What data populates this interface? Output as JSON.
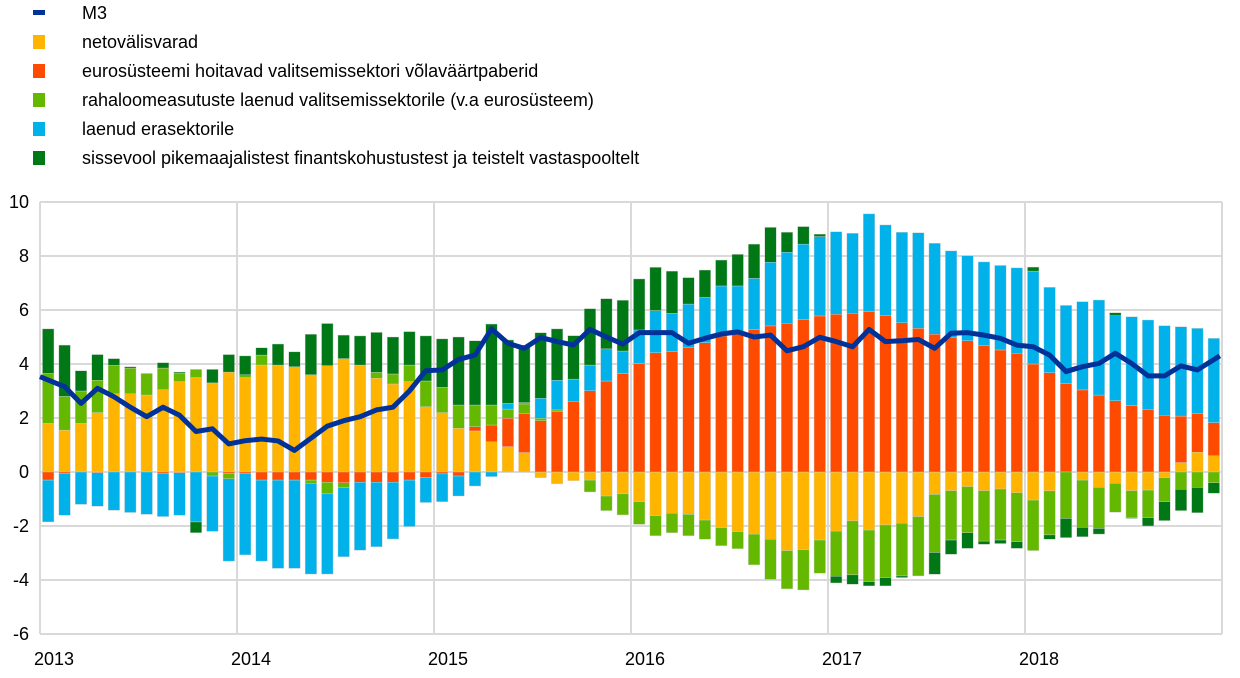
{
  "chart_data": {
    "type": "bar",
    "stacked": true,
    "title": "",
    "xlabel": "",
    "ylabel": "",
    "ylim": [
      -6,
      10
    ],
    "yticks": [
      -6,
      -4,
      -2,
      0,
      2,
      4,
      6,
      8,
      10
    ],
    "xticks": [
      "2013",
      "2014",
      "2015",
      "2016",
      "2017",
      "2018"
    ],
    "x_start": "2013-01",
    "x_end": "2018-12",
    "frequency": "monthly",
    "grid": true,
    "legend_position": "top-left",
    "line": {
      "name": "M3",
      "color": "#003299",
      "values": [
        3.53,
        3.16,
        2.54,
        3.1,
        2.79,
        2.4,
        2.05,
        2.4,
        2.1,
        1.5,
        1.6,
        1.04,
        1.16,
        1.22,
        1.15,
        0.8,
        1.25,
        1.7,
        1.9,
        2.05,
        2.3,
        2.4,
        3.0,
        3.75,
        3.78,
        4.17,
        4.33,
        5.3,
        4.77,
        4.58,
        4.98,
        4.83,
        4.7,
        5.28,
        5.0,
        4.74,
        5.16,
        5.16,
        5.16,
        4.77,
        4.95,
        5.11,
        5.19,
        5.0,
        5.07,
        4.49,
        4.64,
        4.99,
        4.83,
        4.64,
        5.28,
        4.83,
        4.86,
        4.91,
        4.58,
        5.14,
        5.16,
        5.07,
        4.95,
        4.7,
        4.64,
        4.33,
        3.72,
        3.9,
        4.02,
        4.4,
        4.02,
        3.56,
        3.56,
        3.93,
        3.78,
        4.15
      ]
    },
    "series": [
      {
        "name": "netovälisvarad",
        "color": "#FFB400",
        "values": [
          1.8,
          1.55,
          1.8,
          2.2,
          2.9,
          2.9,
          2.85,
          3.05,
          3.35,
          3.5,
          3.3,
          3.7,
          3.5,
          3.96,
          3.96,
          3.9,
          3.6,
          3.94,
          4.2,
          3.96,
          3.47,
          3.26,
          3.35,
          2.42,
          2.2,
          1.62,
          1.52,
          1.12,
          0.94,
          0.72,
          -0.21,
          -0.44,
          -0.32,
          -0.3,
          -0.89,
          -0.81,
          -1.1,
          -1.62,
          -1.53,
          -1.57,
          -1.78,
          -2.06,
          -2.21,
          -2.3,
          -2.49,
          -2.91,
          -2.88,
          -2.52,
          -2.19,
          -1.81,
          -2.15,
          -1.96,
          -1.9,
          -1.65,
          -0.83,
          -0.69,
          -0.54,
          -0.69,
          -0.63,
          -0.77,
          -1.04,
          -0.7,
          0,
          -0.3,
          -0.57,
          -0.42,
          -0.69,
          -0.67,
          -0.21,
          0.35,
          0.73,
          0.6
        ]
      },
      {
        "name": "eurosüsteemi hoitavad valitsemissektori võlaväärtpaberid",
        "color": "#FF4B00",
        "values": [
          -0.3,
          -0.05,
          0,
          -0.03,
          0,
          0,
          0,
          -0.05,
          -0.03,
          0,
          0,
          -0.05,
          -0.05,
          -0.3,
          -0.3,
          -0.3,
          -0.3,
          -0.38,
          -0.4,
          -0.38,
          -0.38,
          -0.38,
          -0.3,
          -0.2,
          -0.07,
          -0.15,
          0.16,
          0.62,
          1.05,
          1.45,
          1.9,
          2.23,
          2.6,
          3.01,
          3.37,
          3.65,
          4.02,
          4.42,
          4.46,
          4.6,
          4.79,
          5.04,
          5.16,
          5.28,
          5.41,
          5.51,
          5.65,
          5.78,
          5.84,
          5.88,
          5.94,
          5.79,
          5.53,
          5.32,
          5.1,
          4.99,
          4.86,
          4.68,
          4.52,
          4.4,
          4.0,
          3.68,
          3.28,
          3.04,
          2.85,
          2.64,
          2.46,
          2.32,
          2.1,
          1.72,
          1.44,
          1.23
        ]
      },
      {
        "name": "rahaloomeasutuste laenud valitsemissektorile (v.a eurosüsteem)",
        "color": "#65B800",
        "values": [
          1.85,
          1.25,
          1.2,
          1.2,
          1.05,
          0.95,
          0.8,
          0.8,
          0.3,
          0.3,
          -0.15,
          -0.2,
          0.1,
          0.37,
          0,
          0,
          -0.12,
          -0.43,
          -0.17,
          0,
          0.22,
          0.37,
          0.61,
          0.95,
          0.94,
          0.86,
          0.8,
          0.74,
          0.34,
          0.35,
          0.09,
          0.07,
          0,
          -0.44,
          -0.54,
          -0.78,
          -0.84,
          -0.74,
          -0.72,
          -0.79,
          -0.71,
          -0.67,
          -0.63,
          -1.14,
          -1.49,
          -1.42,
          -1.49,
          -1.23,
          -1.67,
          -2.0,
          -1.91,
          -1.95,
          -1.95,
          -2.2,
          -2.15,
          -1.83,
          -1.71,
          -1.87,
          -1.89,
          -1.81,
          -1.87,
          -1.63,
          -1.72,
          -1.75,
          -1.52,
          -1.07,
          -1.0,
          -1.02,
          -0.89,
          -0.64,
          -0.57,
          -0.4
        ]
      },
      {
        "name": "laenud erasektorile",
        "color": "#00B1EA",
        "values": [
          -1.55,
          -1.55,
          -1.2,
          -1.24,
          -1.42,
          -1.5,
          -1.57,
          -1.6,
          -1.57,
          -1.85,
          -2.05,
          -3.05,
          -3.02,
          -3.0,
          -3.27,
          -3.27,
          -3.36,
          -2.97,
          -2.57,
          -2.52,
          -2.39,
          -2.1,
          -1.72,
          -0.93,
          -1.03,
          -0.74,
          -0.52,
          -0.17,
          0.21,
          0.05,
          0.74,
          1.1,
          0.84,
          0.95,
          1.19,
          0.83,
          1.24,
          1.56,
          1.42,
          1.62,
          1.68,
          1.85,
          1.73,
          1.89,
          2.36,
          2.63,
          2.79,
          2.94,
          3.06,
          2.96,
          3.62,
          3.36,
          3.35,
          3.54,
          3.37,
          3.2,
          3.15,
          3.1,
          3.13,
          3.16,
          3.44,
          3.16,
          2.89,
          3.27,
          3.52,
          3.15,
          3.29,
          3.31,
          3.32,
          3.31,
          3.15,
          3.12
        ]
      },
      {
        "name": "sissevool pikemaajalistest finantskohustustest ja teistelt vastaspooltelt",
        "color": "#007816",
        "values": [
          1.65,
          1.9,
          0.75,
          0.95,
          0.25,
          0.05,
          0,
          0.2,
          0.05,
          -0.4,
          0.5,
          0.65,
          0.7,
          0.27,
          0.78,
          0.55,
          1.5,
          1.56,
          0.87,
          1.08,
          1.48,
          1.37,
          1.24,
          1.67,
          1.79,
          2.52,
          2.38,
          3.0,
          2.35,
          2.13,
          2.43,
          1.9,
          1.61,
          2.09,
          1.86,
          1.88,
          1.89,
          1.6,
          1.56,
          0.98,
          1.01,
          0.96,
          1.17,
          1.27,
          1.29,
          0.74,
          0.65,
          0.09,
          -0.25,
          -0.35,
          -0.16,
          -0.31,
          -0.06,
          0,
          -0.81,
          -0.53,
          -0.58,
          -0.12,
          -0.13,
          -0.25,
          0.15,
          -0.16,
          -0.71,
          -0.35,
          -0.21,
          0.11,
          -0.03,
          -0.31,
          -0.7,
          -0.79,
          -0.94,
          -0.39
        ]
      }
    ]
  }
}
